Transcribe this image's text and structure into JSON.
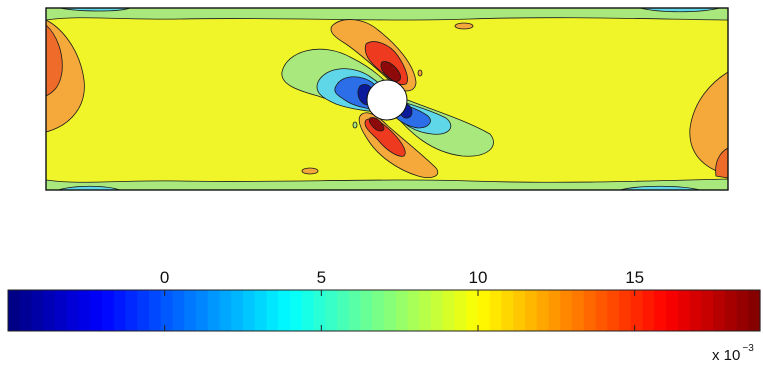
{
  "chart_data": {
    "type": "heatmap",
    "title": "",
    "xlabel": "",
    "ylabel": "",
    "colormap": "jet",
    "colorbar": {
      "orientation": "horizontal",
      "ticks": [
        "0",
        "5",
        "10",
        "15"
      ],
      "tick_values": [
        0,
        5,
        10,
        15
      ],
      "range": [
        -5,
        19
      ],
      "multiplier_base": "x 10",
      "multiplier_exponent": "−3"
    },
    "field": {
      "background_level": 10.5,
      "min_level": -4,
      "max_level": 19,
      "features": [
        {
          "name": "central circular obstacle",
          "value": null
        },
        {
          "name": "upper-right lobe peak",
          "value": 19
        },
        {
          "name": "lower-left lobe peak",
          "value": 19
        },
        {
          "name": "left lobe minimum",
          "value": -4
        },
        {
          "name": "right lobe minimum",
          "value": -4
        }
      ]
    }
  }
}
